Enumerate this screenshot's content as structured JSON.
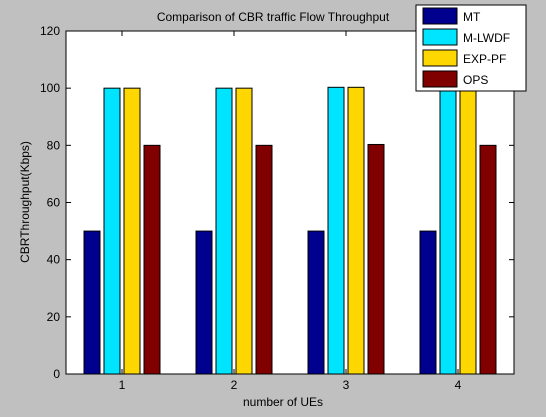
{
  "window": {
    "background": "#c0c0c0"
  },
  "chart_data": {
    "type": "bar",
    "title": "Comparison of CBR traffic Flow Throughput",
    "xlabel": "number of UEs",
    "ylabel": "CBRThroughput(Kbps)",
    "categories": [
      "1",
      "2",
      "3",
      "4"
    ],
    "ylim": [
      0,
      120
    ],
    "yticks": [
      0,
      20,
      40,
      60,
      80,
      100,
      120
    ],
    "grid": false,
    "legend_position": "top-right",
    "series": [
      {
        "name": "MT",
        "color": "#00008f",
        "values": [
          50,
          50,
          50,
          50
        ]
      },
      {
        "name": "M-LWDF",
        "color": "#00e5ff",
        "values": [
          100,
          100,
          100.3,
          100
        ]
      },
      {
        "name": "EXP-PF",
        "color": "#ffd700",
        "values": [
          100,
          100,
          100.3,
          100
        ]
      },
      {
        "name": "OPS",
        "color": "#800000",
        "values": [
          80,
          80,
          80.3,
          80
        ]
      }
    ]
  }
}
